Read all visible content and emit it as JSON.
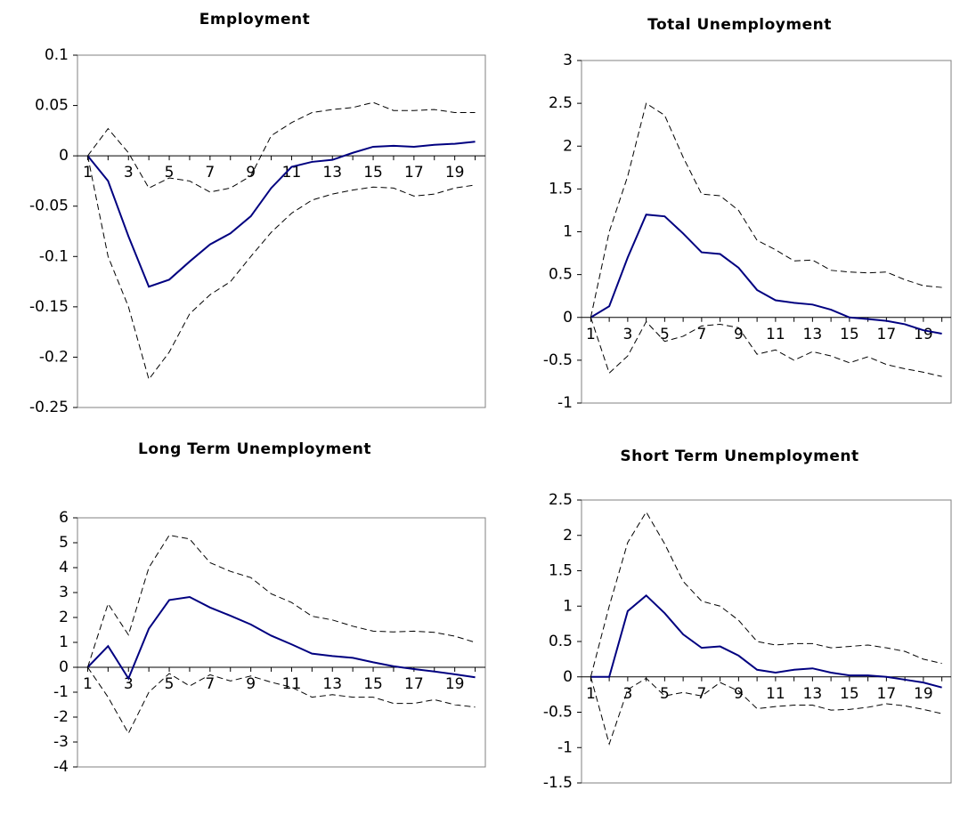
{
  "chart_data": [
    {
      "type": "line",
      "title": "Employment",
      "categories": [
        1,
        null,
        3,
        null,
        5,
        null,
        7,
        null,
        9,
        null,
        11,
        null,
        13,
        null,
        15,
        null,
        17,
        null,
        19,
        null
      ],
      "ylim": [
        -0.25,
        0.1
      ],
      "yticks": [
        -0.25,
        -0.2,
        -0.15,
        -0.1,
        -0.05,
        0,
        0.05,
        0.1
      ],
      "series": [
        {
          "color": "#000080",
          "style": "solid",
          "values": [
            0,
            -0.025,
            -0.08,
            -0.13,
            -0.123,
            -0.105,
            -0.088,
            -0.077,
            -0.06,
            -0.032,
            -0.011,
            -0.006,
            -0.004,
            0.003,
            0.009,
            0.01,
            0.009,
            0.011,
            0.012,
            0.014
          ]
        },
        {
          "color": "#000000",
          "style": "dashed",
          "values": [
            0,
            0.027,
            0.003,
            -0.032,
            -0.022,
            -0.025,
            -0.036,
            -0.032,
            -0.02,
            0.02,
            0.033,
            0.043,
            0.046,
            0.048,
            0.053,
            0.045,
            0.045,
            0.046,
            0.043,
            0.043
          ]
        },
        {
          "color": "#000000",
          "style": "dashed",
          "values": [
            0,
            -0.1,
            -0.15,
            -0.222,
            -0.195,
            -0.157,
            -0.138,
            -0.125,
            -0.1,
            -0.076,
            -0.057,
            -0.044,
            -0.038,
            -0.034,
            -0.031,
            -0.032,
            -0.04,
            -0.038,
            -0.032,
            -0.029
          ]
        }
      ]
    },
    {
      "type": "line",
      "title": "Total Unemployment",
      "categories": [
        1,
        null,
        3,
        null,
        5,
        null,
        7,
        null,
        9,
        null,
        11,
        null,
        13,
        null,
        15,
        null,
        17,
        null,
        19,
        null
      ],
      "ylim": [
        -1,
        3
      ],
      "yticks": [
        -1,
        -0.5,
        0,
        0.5,
        1,
        1.5,
        2,
        2.5,
        3
      ],
      "series": [
        {
          "color": "#000080",
          "style": "solid",
          "values": [
            0,
            0.13,
            0.7,
            1.2,
            1.18,
            0.98,
            0.76,
            0.74,
            0.58,
            0.32,
            0.2,
            0.17,
            0.15,
            0.09,
            0.0,
            -0.02,
            -0.04,
            -0.08,
            -0.15,
            -0.19
          ]
        },
        {
          "color": "#000000",
          "style": "dashed",
          "values": [
            0,
            1.0,
            1.65,
            2.5,
            2.36,
            1.87,
            1.44,
            1.42,
            1.25,
            0.9,
            0.79,
            0.66,
            0.67,
            0.55,
            0.53,
            0.52,
            0.53,
            0.44,
            0.37,
            0.35
          ]
        },
        {
          "color": "#000000",
          "style": "dashed",
          "values": [
            0,
            -0.65,
            -0.45,
            -0.05,
            -0.28,
            -0.22,
            -0.1,
            -0.08,
            -0.12,
            -0.43,
            -0.38,
            -0.5,
            -0.4,
            -0.45,
            -0.53,
            -0.46,
            -0.55,
            -0.6,
            -0.64,
            -0.69
          ]
        }
      ]
    },
    {
      "type": "line",
      "title": "Long Term Unemployment",
      "categories": [
        1,
        null,
        3,
        null,
        5,
        null,
        7,
        null,
        9,
        null,
        11,
        null,
        13,
        null,
        15,
        null,
        17,
        null,
        19,
        null
      ],
      "ylim": [
        -4,
        6
      ],
      "yticks": [
        -4,
        -3,
        -2,
        -1,
        0,
        1,
        2,
        3,
        4,
        5,
        6
      ],
      "series": [
        {
          "color": "#000080",
          "style": "solid",
          "values": [
            0,
            0.85,
            -0.45,
            1.55,
            2.7,
            2.82,
            2.4,
            2.07,
            1.72,
            1.27,
            0.92,
            0.55,
            0.45,
            0.38,
            0.2,
            0.04,
            -0.07,
            -0.17,
            -0.28,
            -0.4
          ]
        },
        {
          "color": "#000000",
          "style": "dashed",
          "values": [
            0,
            2.55,
            1.3,
            4.0,
            5.3,
            5.15,
            4.2,
            3.85,
            3.6,
            2.95,
            2.6,
            2.05,
            1.9,
            1.65,
            1.45,
            1.42,
            1.45,
            1.4,
            1.25,
            1.0
          ]
        },
        {
          "color": "#000000",
          "style": "dashed",
          "values": [
            0,
            -1.2,
            -2.65,
            -1.0,
            -0.25,
            -0.75,
            -0.3,
            -0.55,
            -0.35,
            -0.6,
            -0.8,
            -1.2,
            -1.1,
            -1.2,
            -1.2,
            -1.45,
            -1.45,
            -1.3,
            -1.5,
            -1.6
          ]
        }
      ]
    },
    {
      "type": "line",
      "title": "Short Term Unemployment",
      "categories": [
        1,
        null,
        3,
        null,
        5,
        null,
        7,
        null,
        9,
        null,
        11,
        null,
        13,
        null,
        15,
        null,
        17,
        null,
        19,
        null
      ],
      "ylim": [
        -1.5,
        2.5
      ],
      "yticks": [
        -1.5,
        -1,
        -0.5,
        0,
        0.5,
        1,
        1.5,
        2,
        2.5
      ],
      "series": [
        {
          "color": "#000080",
          "style": "solid",
          "values": [
            0,
            0,
            0.93,
            1.15,
            0.9,
            0.6,
            0.41,
            0.43,
            0.3,
            0.1,
            0.06,
            0.1,
            0.12,
            0.06,
            0.02,
            0.02,
            0.0,
            -0.04,
            -0.08,
            -0.15
          ]
        },
        {
          "color": "#000000",
          "style": "dashed",
          "values": [
            0,
            1.0,
            1.9,
            2.33,
            1.88,
            1.35,
            1.07,
            1.0,
            0.8,
            0.5,
            0.45,
            0.47,
            0.47,
            0.41,
            0.43,
            0.45,
            0.41,
            0.36,
            0.25,
            0.19
          ]
        },
        {
          "color": "#000000",
          "style": "dashed",
          "values": [
            0,
            -0.95,
            -0.18,
            -0.02,
            -0.27,
            -0.22,
            -0.27,
            -0.08,
            -0.2,
            -0.45,
            -0.42,
            -0.4,
            -0.4,
            -0.47,
            -0.46,
            -0.43,
            -0.38,
            -0.41,
            -0.46,
            -0.52
          ]
        }
      ]
    }
  ]
}
